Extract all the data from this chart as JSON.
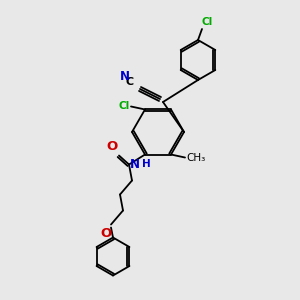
{
  "bg_color": "#e8e8e8",
  "bond_color": "#000000",
  "atom_colors": {
    "N": "#0000cc",
    "O": "#cc0000",
    "Cl": "#00aa00",
    "C": "#000000"
  },
  "font_size": 7.5,
  "lw": 1.3
}
